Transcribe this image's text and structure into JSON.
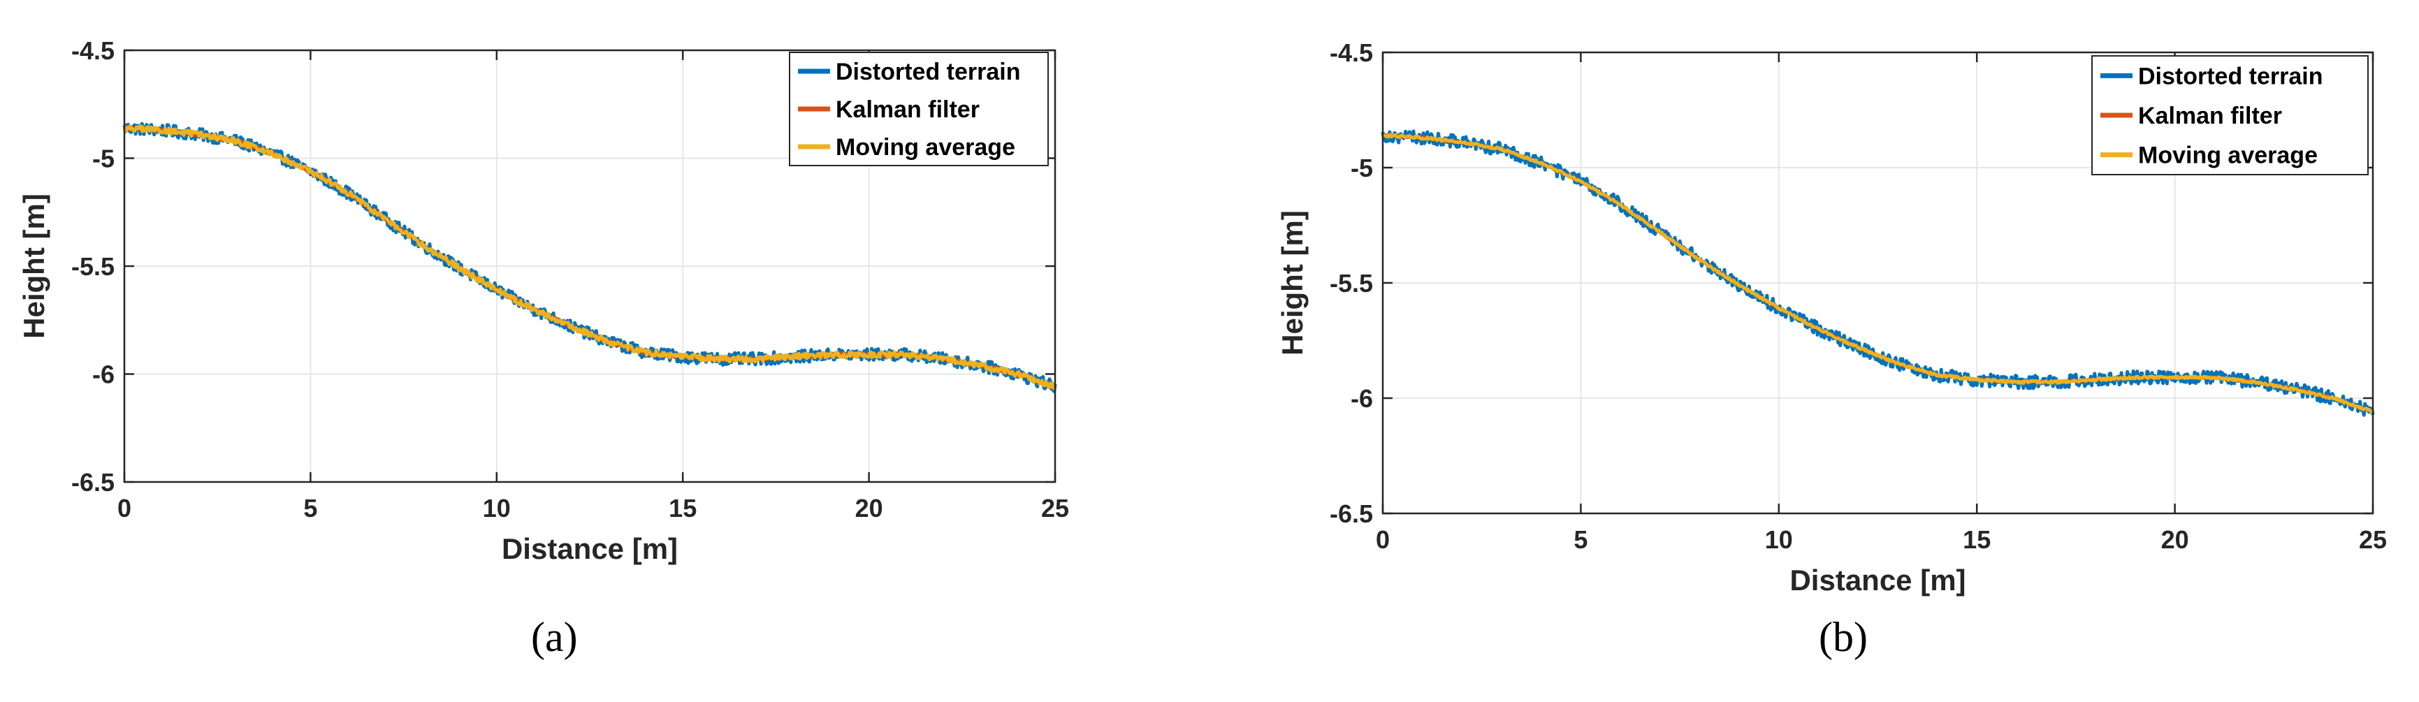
{
  "chart_data": [
    {
      "type": "line",
      "panel_label": "(a)",
      "xlabel": "Distance [m]",
      "ylabel": "Height [m]",
      "xlim": [
        0,
        25
      ],
      "ylim": [
        -6.5,
        -4.5
      ],
      "x_ticks": [
        0,
        5,
        10,
        15,
        20,
        25
      ],
      "y_ticks": [
        -4.5,
        -5,
        -5.5,
        -6,
        -6.5
      ],
      "x_tick_labels": [
        "0",
        "5",
        "10",
        "15",
        "20",
        "25"
      ],
      "y_tick_labels": [
        "-4.5",
        "-5",
        "-5.5",
        "-6",
        "-6.5"
      ],
      "grid": true,
      "legend_position": "top-right",
      "x": [
        0,
        1,
        2,
        3,
        4,
        5,
        6,
        7,
        8,
        9,
        10,
        11,
        12,
        13,
        14,
        15,
        16,
        17,
        18,
        19,
        20,
        21,
        22,
        23,
        24,
        25
      ],
      "series": [
        {
          "name": "Distorted terrain",
          "color": "#0072BD",
          "noise": 0.028,
          "values": [
            -4.86,
            -4.87,
            -4.89,
            -4.92,
            -4.98,
            -5.06,
            -5.16,
            -5.28,
            -5.4,
            -5.51,
            -5.61,
            -5.7,
            -5.78,
            -5.85,
            -5.9,
            -5.92,
            -5.93,
            -5.93,
            -5.92,
            -5.91,
            -5.91,
            -5.91,
            -5.93,
            -5.96,
            -6.0,
            -6.06
          ]
        },
        {
          "name": "Kalman filter",
          "color": "#D95319",
          "noise": 0.008,
          "values": [
            -4.86,
            -4.87,
            -4.89,
            -4.92,
            -4.98,
            -5.06,
            -5.16,
            -5.28,
            -5.4,
            -5.51,
            -5.61,
            -5.7,
            -5.78,
            -5.85,
            -5.9,
            -5.92,
            -5.93,
            -5.93,
            -5.92,
            -5.91,
            -5.91,
            -5.91,
            -5.93,
            -5.96,
            -6.0,
            -6.06
          ]
        },
        {
          "name": "Moving average",
          "color": "#EDB120",
          "noise": 0.014,
          "values": [
            -4.86,
            -4.87,
            -4.89,
            -4.92,
            -4.98,
            -5.06,
            -5.16,
            -5.28,
            -5.4,
            -5.51,
            -5.61,
            -5.7,
            -5.78,
            -5.85,
            -5.9,
            -5.92,
            -5.93,
            -5.93,
            -5.92,
            -5.91,
            -5.91,
            -5.91,
            -5.93,
            -5.96,
            -6.0,
            -6.06
          ]
        }
      ]
    },
    {
      "type": "line",
      "panel_label": "(b)",
      "xlabel": "Distance [m]",
      "ylabel": "Height [m]",
      "xlim": [
        0,
        25
      ],
      "ylim": [
        -6.5,
        -4.5
      ],
      "x_ticks": [
        0,
        5,
        10,
        15,
        20,
        25
      ],
      "y_ticks": [
        -4.5,
        -5,
        -5.5,
        -6,
        -6.5
      ],
      "x_tick_labels": [
        "0",
        "5",
        "10",
        "15",
        "20",
        "25"
      ],
      "y_tick_labels": [
        "-4.5",
        "-5",
        "-5.5",
        "-6",
        "-6.5"
      ],
      "grid": true,
      "legend_position": "top-right",
      "x": [
        0,
        1,
        2,
        3,
        4,
        5,
        6,
        7,
        8,
        9,
        10,
        11,
        12,
        13,
        14,
        15,
        16,
        17,
        18,
        19,
        20,
        21,
        22,
        23,
        24,
        25
      ],
      "series": [
        {
          "name": "Distorted terrain",
          "color": "#0072BD",
          "noise": 0.028,
          "values": [
            -4.86,
            -4.87,
            -4.89,
            -4.92,
            -4.98,
            -5.06,
            -5.16,
            -5.28,
            -5.4,
            -5.51,
            -5.61,
            -5.7,
            -5.78,
            -5.85,
            -5.9,
            -5.92,
            -5.93,
            -5.93,
            -5.92,
            -5.91,
            -5.91,
            -5.91,
            -5.93,
            -5.96,
            -6.0,
            -6.06
          ]
        },
        {
          "name": "Kalman filter",
          "color": "#D95319",
          "noise": 0.004,
          "values": [
            -4.86,
            -4.87,
            -4.89,
            -4.92,
            -4.98,
            -5.06,
            -5.16,
            -5.28,
            -5.4,
            -5.51,
            -5.61,
            -5.7,
            -5.78,
            -5.85,
            -5.9,
            -5.92,
            -5.93,
            -5.93,
            -5.92,
            -5.91,
            -5.91,
            -5.91,
            -5.93,
            -5.96,
            -6.0,
            -6.06
          ]
        },
        {
          "name": "Moving average",
          "color": "#EDB120",
          "noise": 0.006,
          "values": [
            -4.86,
            -4.87,
            -4.89,
            -4.92,
            -4.98,
            -5.06,
            -5.16,
            -5.28,
            -5.4,
            -5.51,
            -5.61,
            -5.7,
            -5.78,
            -5.85,
            -5.9,
            -5.92,
            -5.93,
            -5.93,
            -5.92,
            -5.91,
            -5.91,
            -5.91,
            -5.93,
            -5.96,
            -6.0,
            -6.06
          ]
        }
      ]
    }
  ]
}
